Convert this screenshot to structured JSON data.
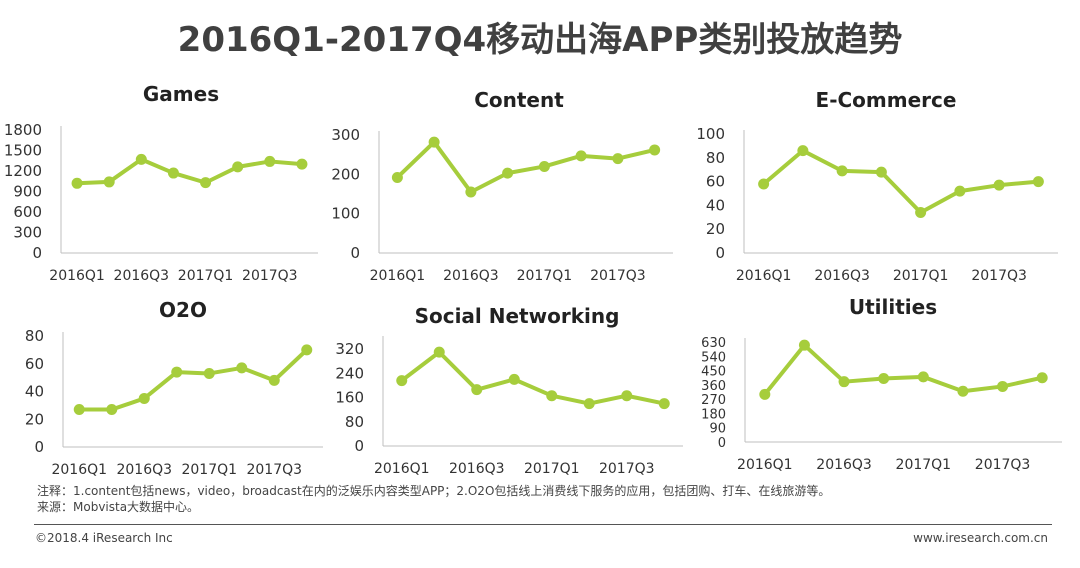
{
  "title": "2016Q1-2017Q4移动出海APP类别投放趋势",
  "accent_color": "#a6cd3c",
  "chart_data": [
    {
      "type": "line",
      "title": "Games",
      "categories": [
        "2016Q1",
        "2016Q2",
        "2016Q3",
        "2016Q4",
        "2017Q1",
        "2017Q2",
        "2017Q3",
        "2017Q4"
      ],
      "tick_labels": [
        "2016Q1",
        "2016Q3",
        "2017Q1",
        "2017Q3"
      ],
      "values": [
        1020,
        1040,
        1370,
        1170,
        1030,
        1260,
        1340,
        1300
      ],
      "yticks": [
        0,
        300,
        600,
        900,
        1200,
        1500,
        1800
      ],
      "ylim": [
        0,
        1800
      ],
      "grid": false
    },
    {
      "type": "line",
      "title": "Content",
      "categories": [
        "2016Q1",
        "2016Q2",
        "2016Q3",
        "2016Q4",
        "2017Q1",
        "2017Q2",
        "2017Q3",
        "2017Q4"
      ],
      "tick_labels": [
        "2016Q1",
        "2016Q3",
        "2017Q1",
        "2017Q3"
      ],
      "values": [
        192,
        282,
        155,
        203,
        220,
        247,
        240,
        262
      ],
      "yticks": [
        0,
        100,
        200,
        300
      ],
      "ylim": [
        0,
        300
      ],
      "grid": false
    },
    {
      "type": "line",
      "title": "E-Commerce",
      "categories": [
        "2016Q1",
        "2016Q2",
        "2016Q3",
        "2016Q4",
        "2017Q1",
        "2017Q2",
        "2017Q3",
        "2017Q4"
      ],
      "tick_labels": [
        "2016Q1",
        "2016Q3",
        "2017Q1",
        "2017Q3"
      ],
      "values": [
        58,
        86,
        69,
        68,
        34,
        52,
        57,
        60
      ],
      "yticks": [
        0,
        20,
        40,
        60,
        80,
        100
      ],
      "ylim": [
        0,
        100
      ],
      "grid": false
    },
    {
      "type": "line",
      "title": "O2O",
      "categories": [
        "2016Q1",
        "2016Q2",
        "2016Q3",
        "2016Q4",
        "2017Q1",
        "2017Q2",
        "2017Q3",
        "2017Q4"
      ],
      "tick_labels": [
        "2016Q1",
        "2016Q3",
        "2017Q1",
        "2017Q3"
      ],
      "values": [
        27,
        27,
        35,
        54,
        53,
        57,
        48,
        70
      ],
      "yticks": [
        0,
        20,
        40,
        60,
        80
      ],
      "ylim": [
        0,
        80
      ],
      "grid": false
    },
    {
      "type": "line",
      "title": "Social Networking",
      "categories": [
        "2016Q1",
        "2016Q2",
        "2016Q3",
        "2016Q4",
        "2017Q1",
        "2017Q2",
        "2017Q3",
        "2017Q4"
      ],
      "tick_labels": [
        "2016Q1",
        "2016Q3",
        "2017Q1",
        "2017Q3"
      ],
      "values": [
        216,
        310,
        186,
        220,
        166,
        140,
        166,
        140
      ],
      "yticks": [
        0,
        80,
        160,
        240,
        320
      ],
      "ylim": [
        0,
        350
      ],
      "grid": false
    },
    {
      "type": "line",
      "title": "Utilities",
      "categories": [
        "2016Q1",
        "2016Q2",
        "2016Q3",
        "2016Q4",
        "2017Q1",
        "2017Q2",
        "2017Q3",
        "2017Q4"
      ],
      "tick_labels": [
        "2016Q1",
        "2016Q3",
        "2017Q1",
        "2017Q3"
      ],
      "values": [
        300,
        610,
        380,
        400,
        410,
        320,
        350,
        405
      ],
      "yticks": [
        0,
        90,
        180,
        270,
        360,
        450,
        540,
        630
      ],
      "ylim": [
        0,
        630
      ],
      "grid": false
    }
  ],
  "notes": [
    "注释：1.content包括news，video，broadcast在内的泛娱乐内容类型APP；2.O2O包括线上消费线下服务的应用，包括团购、打车、在线旅游等。",
    "来源：Mobvista大数据中心。"
  ],
  "footer": {
    "copyright": "©2018.4 iResearch Inc",
    "website": "www.iresearch.com.cn"
  }
}
